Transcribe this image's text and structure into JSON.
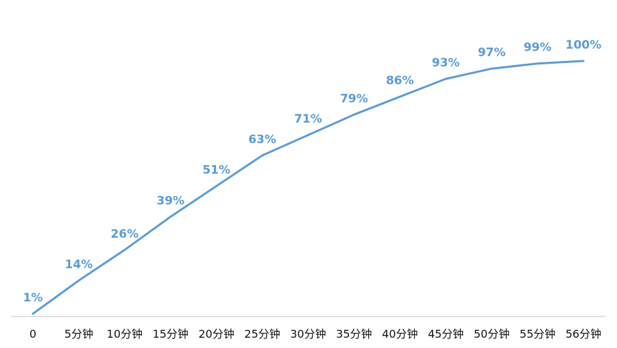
{
  "chart_data": {
    "type": "line",
    "title": "",
    "xlabel": "",
    "ylabel": "",
    "categories": [
      "0",
      "5分钟",
      "10分钟",
      "15分钟",
      "20分钟",
      "25分钟",
      "30分钟",
      "35分钟",
      "40分钟",
      "45分钟",
      "50分钟",
      "55分钟",
      "56分钟"
    ],
    "values": [
      1,
      14,
      26,
      39,
      51,
      63,
      71,
      79,
      86,
      93,
      97,
      99,
      100
    ],
    "data_labels": [
      "1%",
      "14%",
      "26%",
      "39%",
      "51%",
      "63%",
      "71%",
      "79%",
      "86%",
      "93%",
      "97%",
      "99%",
      "100%"
    ],
    "ylim": [
      0,
      100
    ],
    "grid": false,
    "drop_lines": true,
    "legend": "none",
    "colors": {
      "line": "#5b9bd5",
      "label": "#5b9bd5",
      "axis": "#d0d0d0",
      "tick_text": "#111111"
    }
  }
}
